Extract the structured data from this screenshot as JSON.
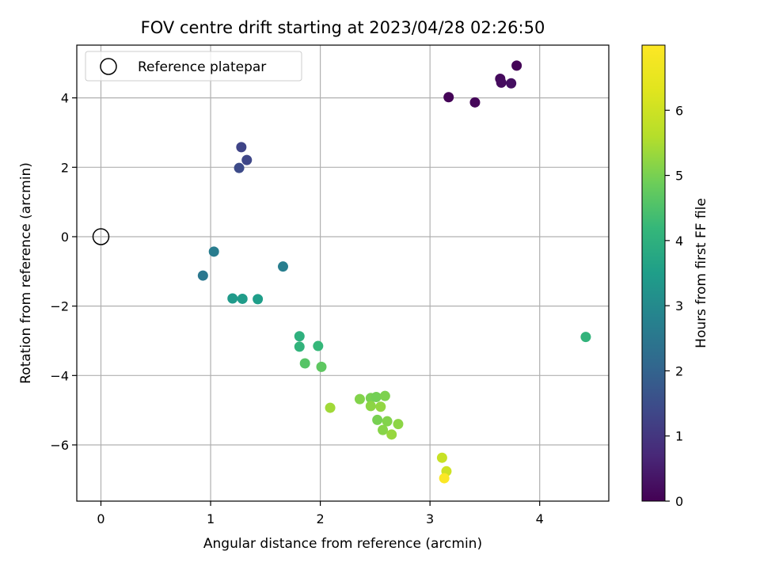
{
  "chart_data": {
    "type": "scatter",
    "title": "FOV centre drift starting at 2023/04/28 02:26:50",
    "xlabel": "Angular distance from reference (arcmin)",
    "ylabel": "Rotation from reference (arcmin)",
    "xlim": [
      -0.22,
      4.63
    ],
    "ylim": [
      -7.62,
      5.52
    ],
    "xticks": [
      0,
      1,
      2,
      3,
      4
    ],
    "yticks": [
      -6,
      -4,
      -2,
      0,
      2,
      4
    ],
    "grid": true,
    "legend": {
      "placement": "upper-left",
      "entries": [
        "Reference platepar"
      ]
    },
    "reference_point": {
      "x": 0,
      "y": 0
    },
    "colorbar": {
      "label": "Hours from first FF file",
      "range": [
        0,
        7.0
      ],
      "ticks": [
        0,
        1,
        2,
        3,
        4,
        5,
        6
      ],
      "colormap": "viridis"
    },
    "points": [
      {
        "x": 3.17,
        "y": 4.02,
        "h": 0.05
      },
      {
        "x": 3.41,
        "y": 3.87,
        "h": 0.1
      },
      {
        "x": 3.64,
        "y": 4.55,
        "h": 0.15
      },
      {
        "x": 3.65,
        "y": 4.44,
        "h": 0.2
      },
      {
        "x": 3.74,
        "y": 4.42,
        "h": 0.25
      },
      {
        "x": 3.79,
        "y": 4.93,
        "h": 0.05
      },
      {
        "x": 1.28,
        "y": 2.58,
        "h": 1.3
      },
      {
        "x": 1.26,
        "y": 1.98,
        "h": 1.45
      },
      {
        "x": 1.33,
        "y": 2.21,
        "h": 1.35
      },
      {
        "x": 1.03,
        "y": -0.43,
        "h": 2.65
      },
      {
        "x": 0.93,
        "y": -1.12,
        "h": 2.5
      },
      {
        "x": 1.66,
        "y": -0.86,
        "h": 2.7
      },
      {
        "x": 1.2,
        "y": -1.78,
        "h": 3.4
      },
      {
        "x": 1.29,
        "y": -1.79,
        "h": 3.45
      },
      {
        "x": 1.43,
        "y": -1.8,
        "h": 3.5
      },
      {
        "x": 1.81,
        "y": -2.87,
        "h": 4.0
      },
      {
        "x": 1.81,
        "y": -3.17,
        "h": 4.1
      },
      {
        "x": 1.98,
        "y": -3.15,
        "h": 4.2
      },
      {
        "x": 1.86,
        "y": -3.65,
        "h": 4.6
      },
      {
        "x": 2.01,
        "y": -3.75,
        "h": 4.7
      },
      {
        "x": 4.42,
        "y": -2.89,
        "h": 4.1
      },
      {
        "x": 2.09,
        "y": -4.93,
        "h": 5.4
      },
      {
        "x": 2.36,
        "y": -4.68,
        "h": 5.1
      },
      {
        "x": 2.46,
        "y": -4.65,
        "h": 5.0
      },
      {
        "x": 2.51,
        "y": -4.62,
        "h": 4.95
      },
      {
        "x": 2.59,
        "y": -4.59,
        "h": 5.05
      },
      {
        "x": 2.46,
        "y": -4.88,
        "h": 5.2
      },
      {
        "x": 2.55,
        "y": -4.9,
        "h": 5.25
      },
      {
        "x": 2.52,
        "y": -5.28,
        "h": 5.0
      },
      {
        "x": 2.61,
        "y": -5.32,
        "h": 5.1
      },
      {
        "x": 2.71,
        "y": -5.4,
        "h": 5.2
      },
      {
        "x": 2.57,
        "y": -5.57,
        "h": 5.15
      },
      {
        "x": 2.65,
        "y": -5.7,
        "h": 5.3
      },
      {
        "x": 3.11,
        "y": -6.37,
        "h": 5.9
      },
      {
        "x": 3.15,
        "y": -6.76,
        "h": 6.0
      },
      {
        "x": 3.13,
        "y": -6.96,
        "h": 6.95
      }
    ]
  }
}
